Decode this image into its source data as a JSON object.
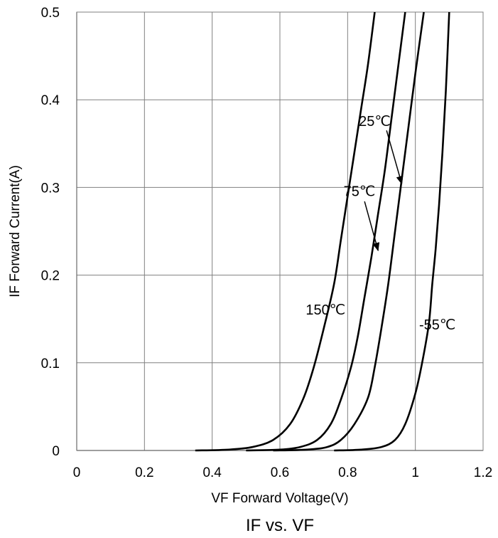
{
  "chart_data": {
    "type": "line",
    "title": "IF vs. VF",
    "xlabel": "VF Forward Voltage(V)",
    "ylabel": "IF Forward Current(A)",
    "xlim": [
      0,
      1.2
    ],
    "ylim": [
      0,
      0.5
    ],
    "x_ticks": [
      "0",
      "0.2",
      "0.4",
      "0.6",
      "0.8",
      "1",
      "1.2"
    ],
    "y_ticks": [
      "0",
      "0.1",
      "0.2",
      "0.3",
      "0.4",
      "0.5"
    ],
    "grid": true,
    "series": [
      {
        "name": "150℃",
        "points": [
          [
            0.35,
            0.0
          ],
          [
            0.45,
            0.001
          ],
          [
            0.52,
            0.004
          ],
          [
            0.58,
            0.012
          ],
          [
            0.63,
            0.03
          ],
          [
            0.67,
            0.06
          ],
          [
            0.7,
            0.095
          ],
          [
            0.73,
            0.14
          ],
          [
            0.76,
            0.19
          ],
          [
            0.78,
            0.24
          ],
          [
            0.8,
            0.29
          ],
          [
            0.82,
            0.34
          ],
          [
            0.84,
            0.39
          ],
          [
            0.86,
            0.44
          ],
          [
            0.88,
            0.5
          ]
        ]
      },
      {
        "name": "75℃",
        "points": [
          [
            0.5,
            0.0
          ],
          [
            0.6,
            0.001
          ],
          [
            0.66,
            0.004
          ],
          [
            0.71,
            0.012
          ],
          [
            0.75,
            0.03
          ],
          [
            0.78,
            0.058
          ],
          [
            0.81,
            0.095
          ],
          [
            0.83,
            0.13
          ],
          [
            0.85,
            0.175
          ],
          [
            0.87,
            0.22
          ],
          [
            0.89,
            0.27
          ],
          [
            0.91,
            0.32
          ],
          [
            0.93,
            0.38
          ],
          [
            0.95,
            0.44
          ],
          [
            0.97,
            0.5
          ]
        ]
      },
      {
        "name": "25℃",
        "points": [
          [
            0.58,
            0.0
          ],
          [
            0.68,
            0.001
          ],
          [
            0.74,
            0.004
          ],
          [
            0.78,
            0.012
          ],
          [
            0.82,
            0.03
          ],
          [
            0.86,
            0.06
          ],
          [
            0.88,
            0.095
          ],
          [
            0.9,
            0.14
          ],
          [
            0.92,
            0.19
          ],
          [
            0.94,
            0.25
          ],
          [
            0.96,
            0.31
          ],
          [
            0.98,
            0.37
          ],
          [
            1.0,
            0.43
          ],
          [
            1.025,
            0.5
          ]
        ]
      },
      {
        "name": "-55℃",
        "points": [
          [
            0.76,
            0.0
          ],
          [
            0.84,
            0.001
          ],
          [
            0.9,
            0.004
          ],
          [
            0.94,
            0.012
          ],
          [
            0.97,
            0.03
          ],
          [
            1.0,
            0.065
          ],
          [
            1.02,
            0.1
          ],
          [
            1.04,
            0.145
          ],
          [
            1.05,
            0.19
          ],
          [
            1.06,
            0.23
          ],
          [
            1.07,
            0.28
          ],
          [
            1.08,
            0.34
          ],
          [
            1.09,
            0.41
          ],
          [
            1.1,
            0.5
          ]
        ]
      }
    ],
    "annotations": [
      {
        "text": "25℃",
        "label_at": [
          0.88,
          0.37
        ],
        "arrow_from": [
          0.915,
          0.365
        ],
        "arrow_to": [
          0.96,
          0.304
        ]
      },
      {
        "text": "75℃",
        "label_at": [
          0.835,
          0.29
        ],
        "arrow_from": [
          0.85,
          0.284
        ],
        "arrow_to": [
          0.89,
          0.228
        ]
      },
      {
        "text": "150℃",
        "label_at": [
          0.735,
          0.155
        ]
      },
      {
        "text": "-55℃",
        "label_at": [
          1.065,
          0.138
        ]
      }
    ]
  }
}
